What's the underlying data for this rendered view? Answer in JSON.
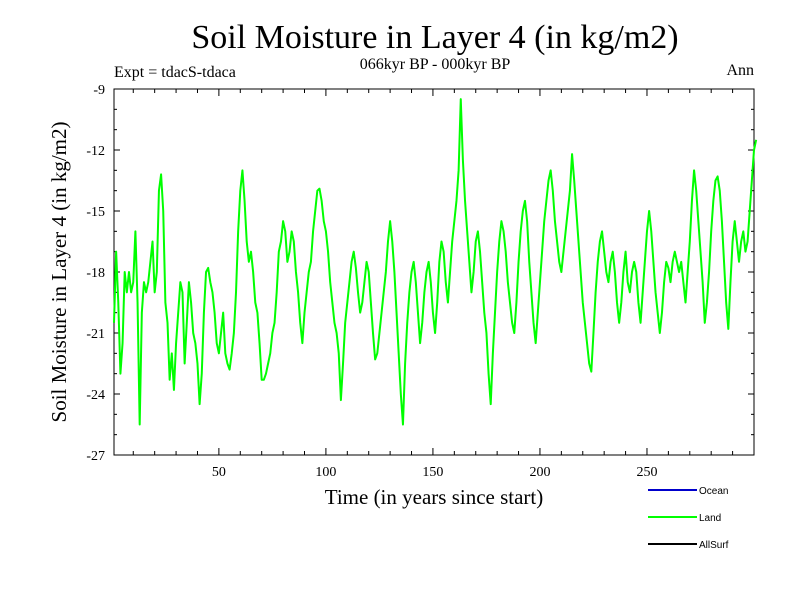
{
  "chart_data": {
    "type": "line",
    "title": "Soil Moisture in Layer 4 (in kg/m2)",
    "subtitle": "066kyr BP - 000kyr BP",
    "experiment": "Expt = tdacS-tdaca",
    "season": "Ann",
    "xlabel": "Time (in years since start)",
    "ylabel": "Soil Moisture in Layer 4 (in kg/m2)",
    "xlim": [
      1,
      300
    ],
    "ylim": [
      -27,
      -9
    ],
    "xticks": [
      50,
      100,
      150,
      200,
      250
    ],
    "xtick_labels": [
      "50",
      "100",
      "150",
      "200",
      "250"
    ],
    "yticks": [
      -9,
      -12,
      -15,
      -18,
      -21,
      -24,
      -27
    ],
    "ytick_labels": [
      "-9",
      "-12",
      "-15",
      "-18",
      "-21",
      "-24",
      "-27"
    ],
    "grid": false,
    "legend": [
      {
        "name": "Ocean",
        "color": "#0000cc"
      },
      {
        "name": "Land",
        "color": "#00ff00"
      },
      {
        "name": "AllSurf",
        "color": "#000000"
      }
    ],
    "series": [
      {
        "name": "Land",
        "color": "#00ff00",
        "x_start": 1,
        "x_step": 1,
        "values": [
          -20.5,
          -17.0,
          -19.5,
          -23.0,
          -21.5,
          -18.0,
          -19.0,
          -18.0,
          -19.0,
          -18.5,
          -16.0,
          -19.5,
          -25.5,
          -20.0,
          -18.5,
          -19.0,
          -18.5,
          -17.5,
          -16.5,
          -19.0,
          -18.0,
          -14.0,
          -13.2,
          -15.0,
          -19.5,
          -20.5,
          -23.3,
          -22.0,
          -23.8,
          -21.5,
          -20.0,
          -18.5,
          -19.0,
          -22.5,
          -20.5,
          -18.5,
          -19.5,
          -21.0,
          -21.5,
          -22.5,
          -24.5,
          -23.0,
          -20.0,
          -18.0,
          -17.8,
          -18.5,
          -19.0,
          -20.0,
          -21.5,
          -22.0,
          -21.0,
          -20.0,
          -22.0,
          -22.5,
          -22.8,
          -22.0,
          -21.0,
          -19.0,
          -16.0,
          -14.0,
          -13.0,
          -14.5,
          -16.5,
          -17.5,
          -17.0,
          -18.0,
          -19.5,
          -20.0,
          -21.5,
          -23.3,
          -23.3,
          -23.0,
          -22.5,
          -22.0,
          -21.0,
          -20.5,
          -19.0,
          -17.0,
          -16.5,
          -15.5,
          -16.0,
          -17.5,
          -17.0,
          -16.0,
          -16.5,
          -18.0,
          -19.0,
          -20.5,
          -21.5,
          -20.0,
          -19.0,
          -18.0,
          -17.5,
          -16.0,
          -15.0,
          -14.0,
          -13.9,
          -14.5,
          -15.5,
          -16.0,
          -17.0,
          -18.5,
          -19.5,
          -20.5,
          -21.0,
          -22.0,
          -24.3,
          -22.5,
          -20.5,
          -19.5,
          -18.5,
          -17.5,
          -17.0,
          -17.8,
          -19.0,
          -20.0,
          -19.5,
          -18.5,
          -17.5,
          -18.0,
          -19.5,
          -21.0,
          -22.3,
          -22.0,
          -21.0,
          -20.0,
          -19.0,
          -18.0,
          -16.5,
          -15.5,
          -16.5,
          -18.0,
          -20.0,
          -22.0,
          -24.0,
          -25.5,
          -22.5,
          -20.5,
          -19.0,
          -18.0,
          -17.5,
          -18.5,
          -20.0,
          -21.5,
          -20.5,
          -19.0,
          -18.0,
          -17.5,
          -18.5,
          -20.0,
          -21.0,
          -19.5,
          -17.5,
          -16.5,
          -17.0,
          -18.5,
          -19.5,
          -18.0,
          -16.5,
          -15.5,
          -14.5,
          -13.0,
          -9.5,
          -12.5,
          -14.5,
          -16.0,
          -17.5,
          -19.0,
          -18.0,
          -16.5,
          -16.0,
          -17.0,
          -18.5,
          -20.0,
          -21.0,
          -23.0,
          -24.5,
          -22.0,
          -20.0,
          -18.0,
          -16.5,
          -15.5,
          -16.0,
          -17.0,
          -18.5,
          -19.5,
          -20.5,
          -21.0,
          -19.5,
          -17.5,
          -16.0,
          -15.0,
          -14.5,
          -15.5,
          -17.5,
          -19.0,
          -20.5,
          -21.5,
          -20.0,
          -18.5,
          -17.0,
          -15.5,
          -14.5,
          -13.5,
          -13.0,
          -14.0,
          -15.5,
          -16.5,
          -17.5,
          -18.0,
          -17.0,
          -16.0,
          -15.0,
          -14.0,
          -12.2,
          -13.5,
          -15.0,
          -16.5,
          -18.0,
          -19.5,
          -20.5,
          -21.5,
          -22.5,
          -22.9,
          -21.0,
          -19.0,
          -17.5,
          -16.5,
          -16.0,
          -17.0,
          -18.0,
          -18.5,
          -17.5,
          -17.0,
          -18.0,
          -19.5,
          -20.5,
          -19.5,
          -18.0,
          -17.0,
          -18.5,
          -19.0,
          -18.0,
          -17.5,
          -18.0,
          -19.5,
          -20.5,
          -19.0,
          -17.5,
          -16.0,
          -15.0,
          -16.0,
          -17.5,
          -19.0,
          -20.0,
          -21.0,
          -20.0,
          -18.5,
          -17.5,
          -17.8,
          -18.5,
          -17.5,
          -17.0,
          -17.5,
          -18.0,
          -17.5,
          -18.5,
          -19.5,
          -18.0,
          -16.5,
          -14.5,
          -13.0,
          -14.0,
          -15.5,
          -17.0,
          -18.5,
          -20.5,
          -19.5,
          -18.0,
          -16.0,
          -14.5,
          -13.5,
          -13.3,
          -14.0,
          -15.5,
          -17.5,
          -19.5,
          -20.8,
          -18.5,
          -16.5,
          -15.5,
          -16.5,
          -17.5,
          -16.5,
          -16.0,
          -17.0,
          -16.5,
          -15.0,
          -13.5,
          -12.0,
          -11.5
        ]
      }
    ]
  }
}
